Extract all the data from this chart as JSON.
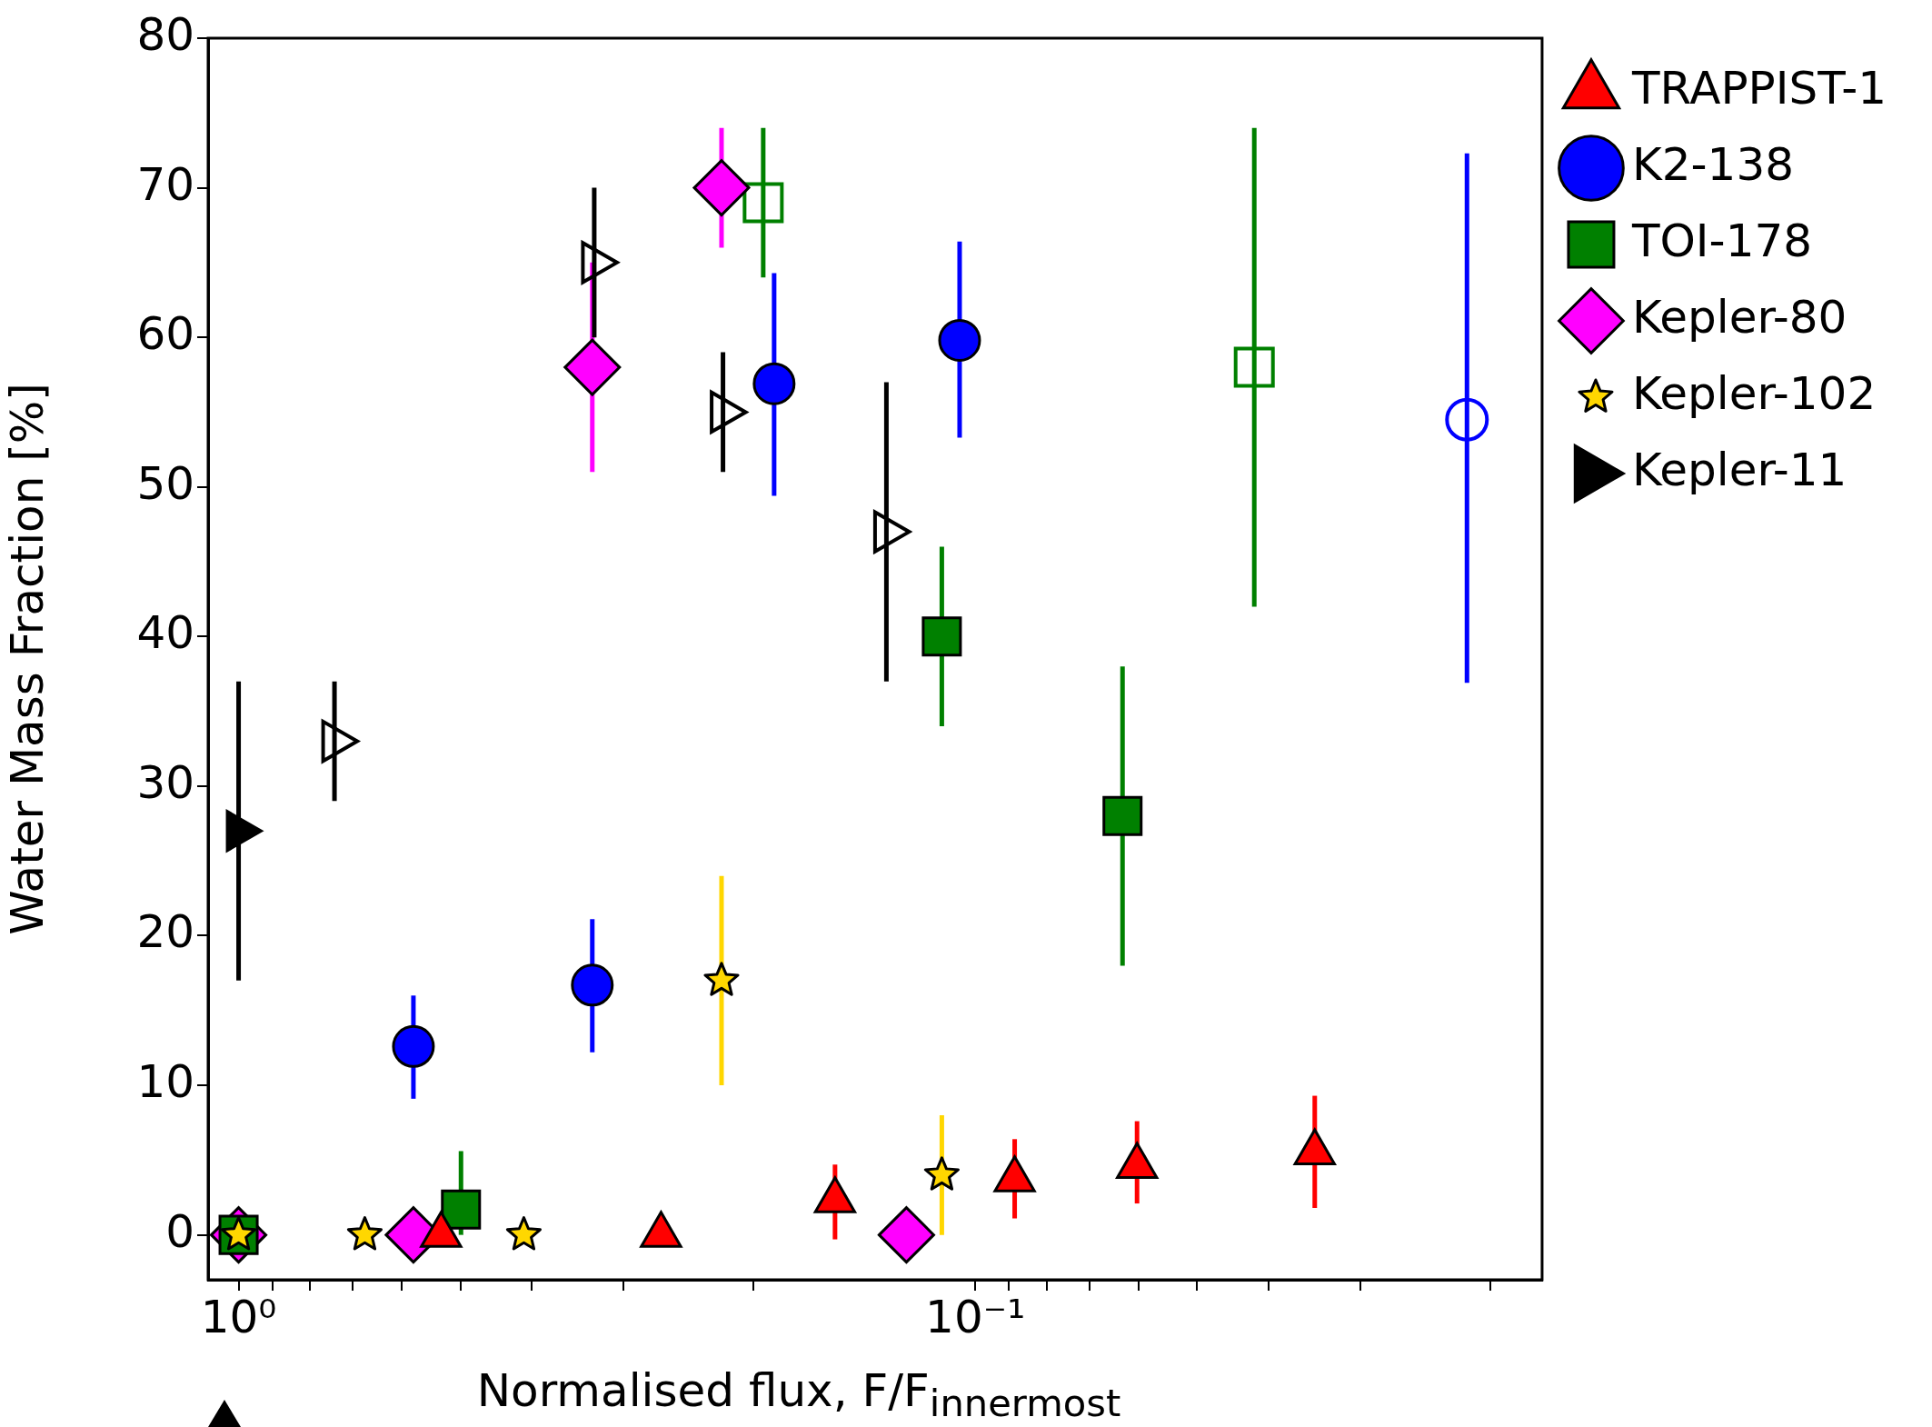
{
  "chart_data": {
    "type": "scatter",
    "xlabel": "Normalised flux, F/F$_{innermost}$",
    "ylabel": "Water Mass Fraction [%]",
    "log": "x",
    "legend": "top right",
    "xlim": [
      1.1,
      0.017
    ],
    "ylim": [
      -3,
      80
    ],
    "xticks": [
      {
        "value": 1,
        "label": "10⁰"
      },
      {
        "value": 0.9,
        "label": null
      },
      {
        "value": 0.8,
        "label": null
      },
      {
        "value": 0.7,
        "label": null
      },
      {
        "value": 0.6,
        "label": null
      },
      {
        "value": 0.5,
        "label": null
      },
      {
        "value": 0.4,
        "label": null
      },
      {
        "value": 0.3,
        "label": null
      },
      {
        "value": 0.2,
        "label": null
      },
      {
        "value": 0.1,
        "label": "10⁻¹"
      },
      {
        "value": 0.09,
        "label": null
      },
      {
        "value": 0.08,
        "label": null
      },
      {
        "value": 0.07,
        "label": null
      },
      {
        "value": 0.06,
        "label": null
      },
      {
        "value": 0.05,
        "label": null
      },
      {
        "value": 0.04,
        "label": null
      },
      {
        "value": 0.03,
        "label": null
      },
      {
        "value": 0.02,
        "label": null
      }
    ],
    "yticks": [
      0,
      10,
      20,
      30,
      40,
      50,
      60,
      70,
      80
    ],
    "series": [
      {
        "name": "TRAPPIST-1",
        "color": "#ff0000",
        "marker": "triangle",
        "x": [
          0.531,
          0.267,
          0.155,
          0.0884,
          0.0603,
          0.0346
        ],
        "values": [
          0,
          0,
          2.3,
          3.7,
          4.6,
          5.5
        ],
        "errors": [
          null,
          null,
          [
            -0.3,
            4.7
          ],
          [
            1.1,
            6.4
          ],
          [
            2.1,
            7.6
          ],
          [
            1.8,
            9.3
          ]
        ]
      },
      {
        "name": "K2-138",
        "color": "#0000ff",
        "marker": "circle",
        "x": [
          0.579,
          0.331,
          0.1875,
          0.105
        ],
        "values": [
          12.6,
          16.7,
          56.9,
          59.8
        ],
        "errors": [
          [
            9.1,
            16.0
          ],
          [
            12.2,
            21.1
          ],
          [
            49.4,
            64.3
          ],
          [
            53.3,
            66.4
          ]
        ]
      },
      {
        "name": "TOI-178",
        "color": "#008000",
        "marker": "square",
        "x": [
          1.0,
          0.499,
          0.111,
          0.0631
        ],
        "values": [
          0,
          1.7,
          40,
          28
        ],
        "errors": [
          null,
          [
            0,
            5.6
          ],
          6,
          10
        ]
      },
      {
        "name": "Kepler-80",
        "color": "#ff00ff",
        "marker": "diamond",
        "x": [
          1.0,
          0.579,
          0.331,
          0.221,
          0.124
        ],
        "values": [
          0,
          0,
          58,
          70,
          0
        ],
        "errors": [
          null,
          null,
          7,
          4,
          null
        ]
      },
      {
        "name": "Kepler-102",
        "color": "#ffd700",
        "marker": "star",
        "x": [
          1.0,
          0.674,
          0.41,
          0.221,
          0.111
        ],
        "values": [
          0,
          0,
          0,
          17,
          4
        ],
        "errors": [
          null,
          null,
          null,
          7,
          4
        ]
      },
      {
        "name": "Kepler-11",
        "color": "#000000",
        "marker": "triangle-right",
        "x": [
          1.0
        ],
        "values": [
          27
        ],
        "errors": [
          10
        ]
      },
      {
        "color": "#0000ff",
        "marker": "circle",
        "x": [
          0.0215
        ],
        "values": [
          54.5
        ],
        "errors": [
          [
            36.9,
            72.3
          ]
        ]
      },
      {
        "color": "#008000",
        "marker": "square",
        "x": [
          0.194,
          0.0418
        ],
        "values": [
          69,
          58
        ],
        "errors": [
          5,
          16
        ]
      },
      {
        "color": "#000000",
        "marker": "triangle-right",
        "x": [
          0.741,
          0.329,
          0.22,
          0.132
        ],
        "values": [
          33,
          65,
          55,
          47
        ],
        "errors": [
          4,
          5,
          4,
          10
        ]
      }
    ]
  }
}
